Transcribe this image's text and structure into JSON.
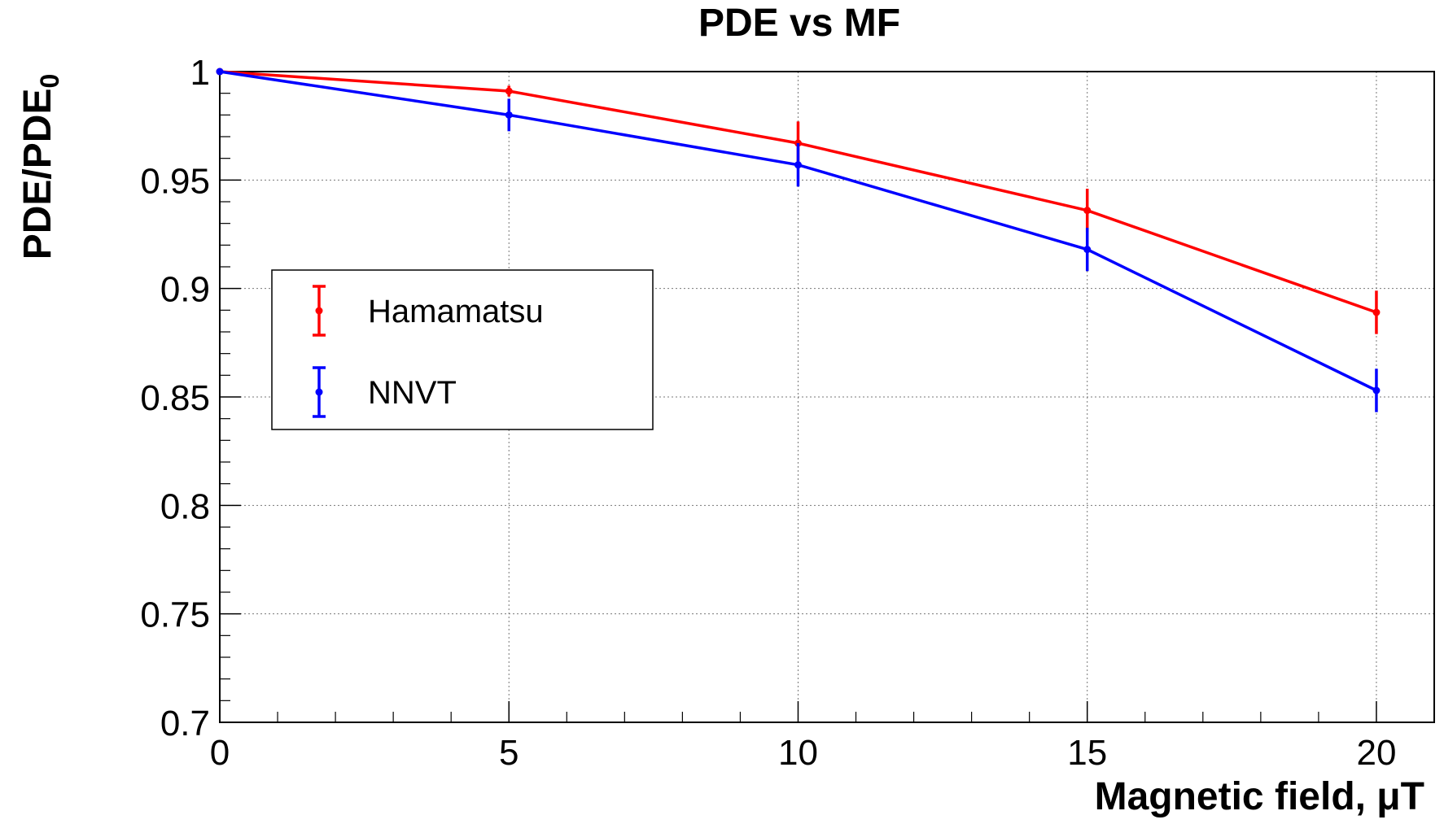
{
  "chart_data": {
    "type": "line",
    "title": "PDE vs MF",
    "xlabel": "Magnetic field, μT",
    "ylabel": {
      "main": "PDE/PDE",
      "subscript": "0"
    },
    "xlim": [
      0,
      21
    ],
    "ylim": [
      0.7,
      1.0
    ],
    "grid": true,
    "legend_position": "center-left",
    "x_ticks": [
      {
        "value": 0,
        "label": "0"
      },
      {
        "value": 5,
        "label": "5"
      },
      {
        "value": 10,
        "label": "10"
      },
      {
        "value": 15,
        "label": "15"
      },
      {
        "value": 20,
        "label": "20"
      }
    ],
    "y_ticks": [
      {
        "value": 0.7,
        "label": "0.7"
      },
      {
        "value": 0.75,
        "label": "0.75"
      },
      {
        "value": 0.8,
        "label": "0.8"
      },
      {
        "value": 0.85,
        "label": "0.85"
      },
      {
        "value": 0.9,
        "label": "0.9"
      },
      {
        "value": 0.95,
        "label": "0.95"
      },
      {
        "value": 1.0,
        "label": "1"
      }
    ],
    "series": [
      {
        "name": "Hamamatsu",
        "color": "#ff0000",
        "x": [
          0,
          5,
          10,
          15,
          20
        ],
        "y": [
          1.0,
          0.991,
          0.967,
          0.936,
          0.889
        ],
        "err": [
          0,
          0.001,
          0.004,
          0.004,
          0.004
        ]
      },
      {
        "name": "NNVT",
        "color": "#0000ff",
        "x": [
          0,
          5,
          10,
          15,
          20
        ],
        "y": [
          1.0,
          0.98,
          0.957,
          0.918,
          0.853
        ],
        "err": [
          0,
          0.003,
          0.004,
          0.004,
          0.004
        ]
      }
    ]
  }
}
